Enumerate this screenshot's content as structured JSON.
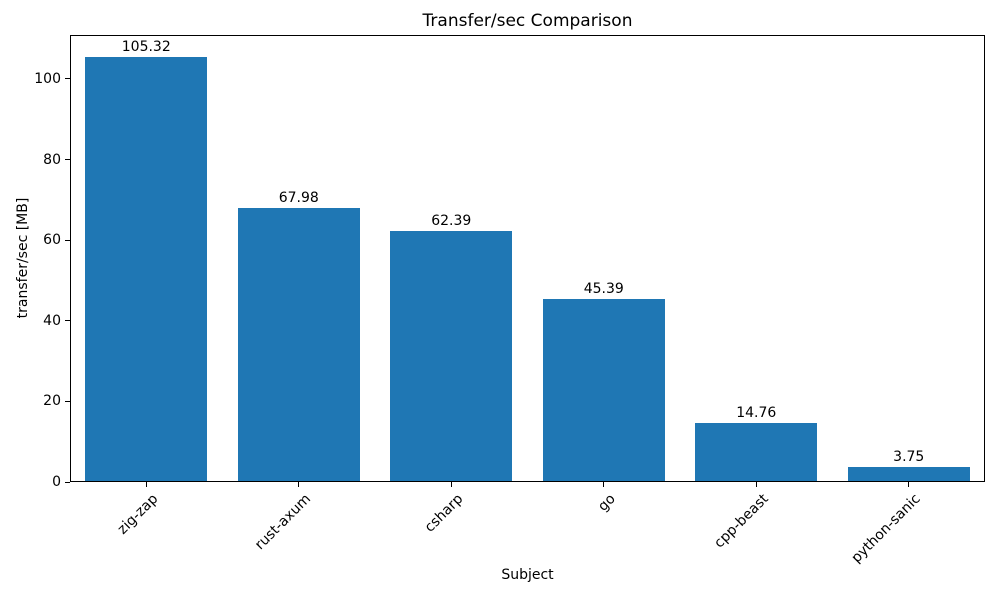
{
  "chart_data": {
    "type": "bar",
    "title": "Transfer/sec Comparison",
    "xlabel": "Subject",
    "ylabel": "transfer/sec [MB]",
    "categories": [
      "zig-zap",
      "rust-axum",
      "csharp",
      "go",
      "cpp-beast",
      "python-sanic"
    ],
    "values": [
      105.32,
      67.98,
      62.39,
      45.39,
      14.76,
      3.75
    ],
    "bar_labels": [
      "105.32",
      "67.98",
      "62.39",
      "45.39",
      "14.76",
      "3.75"
    ],
    "y_ticks": [
      0,
      20,
      40,
      60,
      80,
      100
    ],
    "y_tick_labels": [
      "0",
      "20",
      "40",
      "60",
      "80",
      "100"
    ],
    "ylim": [
      0,
      110.9
    ],
    "bar_color": "#1f77b4",
    "axis_color": "#000000",
    "background_color": "#ffffff",
    "grid": false,
    "legend": null,
    "x_tick_rotation": 45,
    "bar_width_fraction": 0.8
  }
}
